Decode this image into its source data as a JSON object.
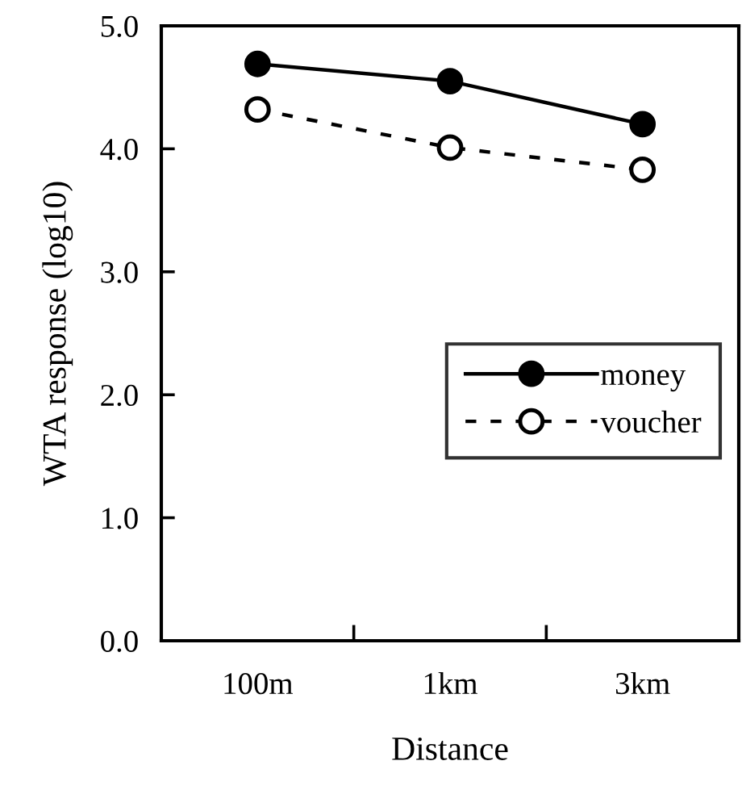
{
  "chart_data": {
    "type": "line",
    "xlabel": "Distance",
    "ylabel": "WTA response (log10)",
    "categories": [
      "100m",
      "1km",
      "3km"
    ],
    "series": [
      {
        "name": "money",
        "color": "#000000",
        "values": [
          4.69,
          4.55,
          4.2
        ],
        "marker": "circle",
        "line_style": "solid"
      },
      {
        "name": "voucher",
        "color": "#000000",
        "values": [
          4.32,
          4.01,
          3.83
        ],
        "marker": "circle",
        "line_style": "dashed"
      }
    ],
    "ylim": [
      0,
      5
    ],
    "yticks": [
      {
        "value": 0,
        "label": "0.0"
      },
      {
        "value": 1,
        "label": "1.0"
      },
      {
        "value": 2,
        "label": "2.0"
      },
      {
        "value": 3,
        "label": "3.0"
      },
      {
        "value": 4,
        "label": "4.0"
      },
      {
        "value": 5,
        "label": "5.0"
      }
    ],
    "grid": false,
    "legend": "right"
  }
}
